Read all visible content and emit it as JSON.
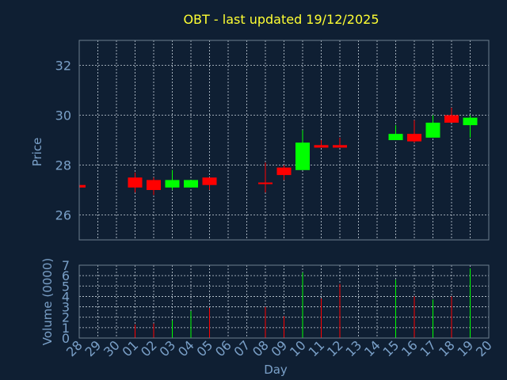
{
  "chart_data": {
    "type": "candlestick",
    "title": "OBT - last updated 19/12/2025",
    "xlabel": "Day",
    "price_ylabel": "Price",
    "volume_ylabel": "Volume (0000)",
    "price_ylim": [
      25,
      33
    ],
    "price_yticks": [
      "26",
      "28",
      "30",
      "32"
    ],
    "volume_ylim": [
      0,
      7
    ],
    "volume_yticks": [
      "0",
      "1",
      "2",
      "3",
      "4",
      "5",
      "6",
      "7"
    ],
    "x_ticks": [
      "28",
      "29",
      "30",
      "01",
      "02",
      "03",
      "04",
      "05",
      "06",
      "07",
      "08",
      "09",
      "10",
      "11",
      "12",
      "13",
      "14",
      "15",
      "16",
      "17",
      "18",
      "19",
      "20"
    ],
    "up_color": "#00ff00",
    "down_color": "#ff0000",
    "grid": true,
    "candles": [
      {
        "day": "28",
        "open": 27.2,
        "high": 27.2,
        "low": 27.1,
        "close": 27.1,
        "volume": 0
      },
      {
        "day": "01",
        "open": 27.5,
        "high": 27.7,
        "low": 26.9,
        "close": 27.1,
        "volume": 1.3
      },
      {
        "day": "02",
        "open": 27.4,
        "high": 27.5,
        "low": 26.8,
        "close": 27.0,
        "volume": 1.4
      },
      {
        "day": "03",
        "open": 27.1,
        "high": 27.8,
        "low": 27.0,
        "close": 27.4,
        "volume": 1.7
      },
      {
        "day": "04",
        "open": 27.1,
        "high": 27.4,
        "low": 27.1,
        "close": 27.4,
        "volume": 2.6
      },
      {
        "day": "05",
        "open": 27.5,
        "high": 27.5,
        "low": 27.0,
        "close": 27.2,
        "volume": 2.9
      },
      {
        "day": "08",
        "open": 27.3,
        "high": 28.1,
        "low": 26.9,
        "close": 27.25,
        "volume": 3.0
      },
      {
        "day": "09",
        "open": 27.9,
        "high": 28.0,
        "low": 27.4,
        "close": 27.6,
        "volume": 2.1
      },
      {
        "day": "10",
        "open": 27.8,
        "high": 29.4,
        "low": 27.8,
        "close": 28.9,
        "volume": 6.3
      },
      {
        "day": "11",
        "open": 28.8,
        "high": 29.0,
        "low": 28.7,
        "close": 28.7,
        "volume": 3.8
      },
      {
        "day": "12",
        "open": 28.8,
        "high": 29.1,
        "low": 28.7,
        "close": 28.7,
        "volume": 5.2
      },
      {
        "day": "15",
        "open": 29.0,
        "high": 29.6,
        "low": 29.0,
        "close": 29.25,
        "volume": 5.6
      },
      {
        "day": "16",
        "open": 29.25,
        "high": 29.8,
        "low": 28.9,
        "close": 28.95,
        "volume": 4.0
      },
      {
        "day": "17",
        "open": 29.1,
        "high": 30.0,
        "low": 29.1,
        "close": 29.7,
        "volume": 3.7
      },
      {
        "day": "18",
        "open": 30.0,
        "high": 30.3,
        "low": 29.7,
        "close": 29.7,
        "volume": 4.0
      },
      {
        "day": "19",
        "open": 29.6,
        "high": 30.0,
        "low": 29.1,
        "close": 29.9,
        "volume": 6.7
      }
    ]
  }
}
